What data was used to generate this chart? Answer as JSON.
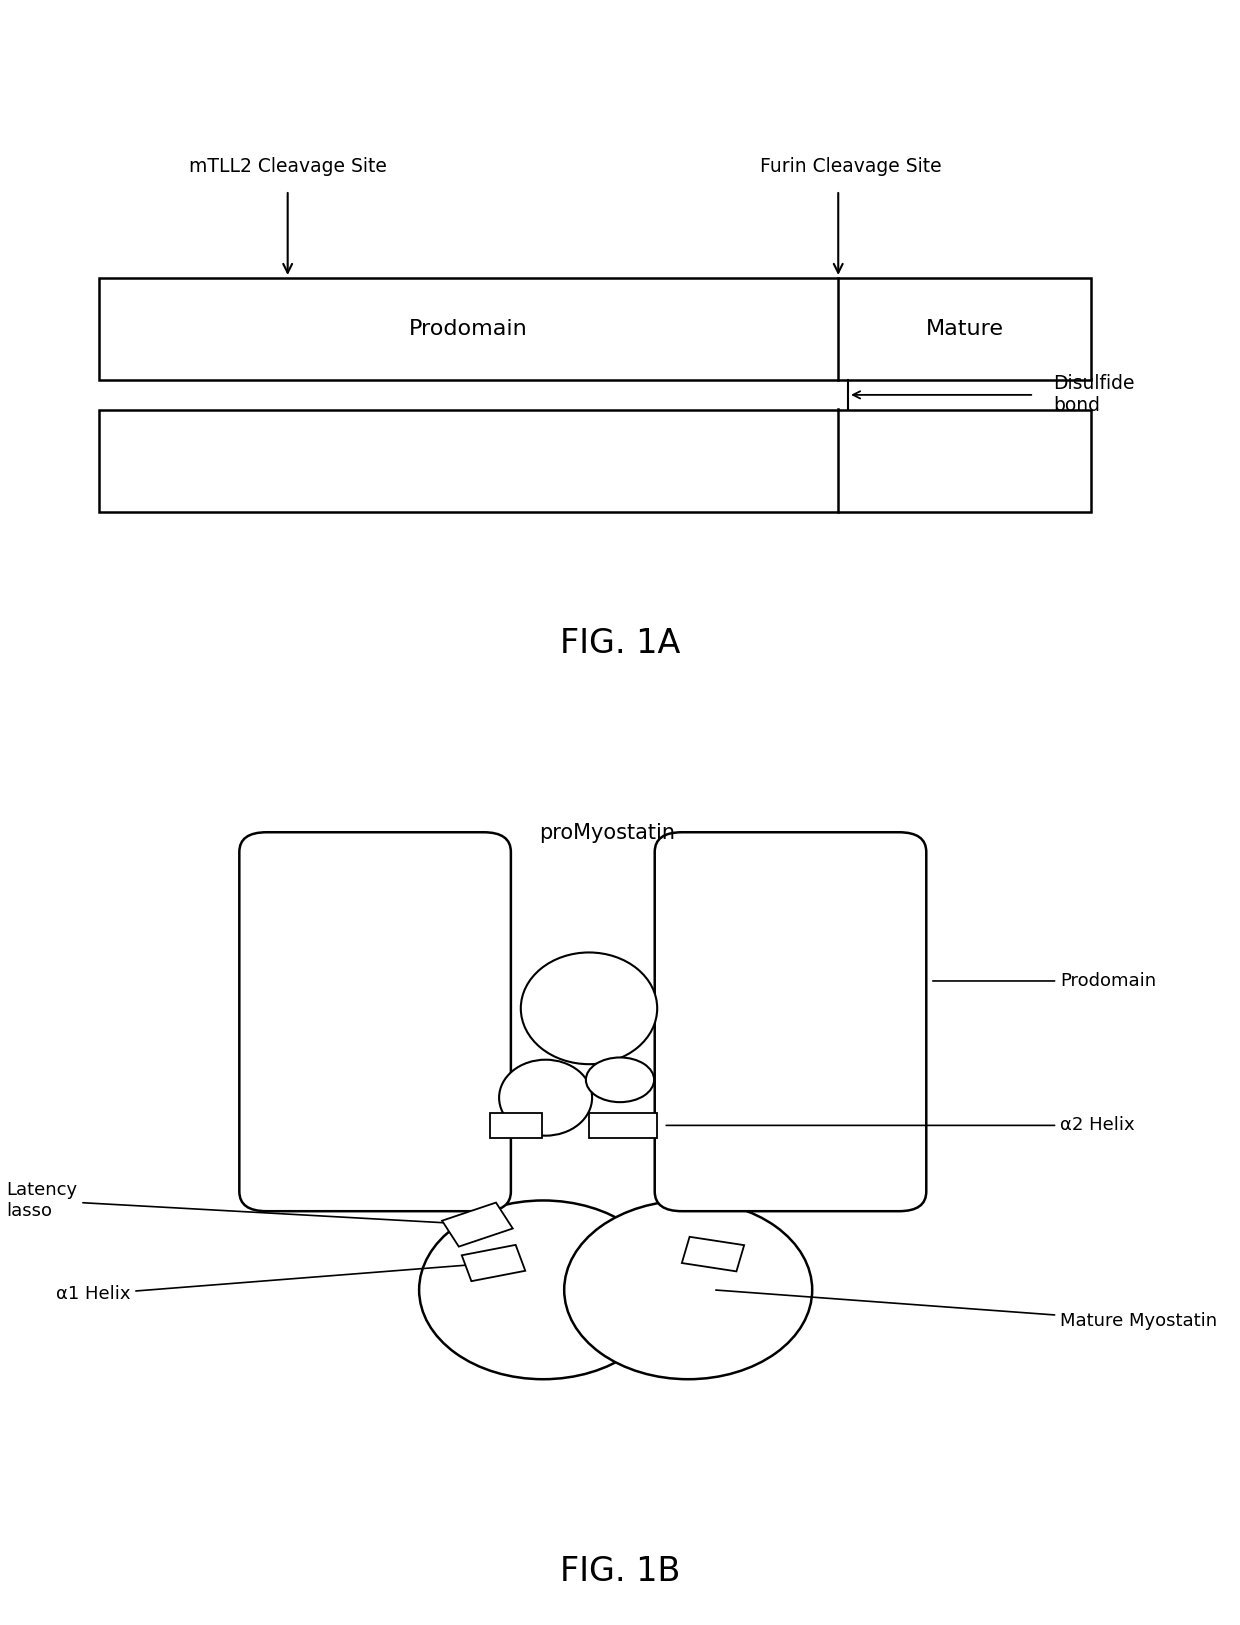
{
  "bg_color": "#ffffff",
  "fig1a": {
    "title": "FIG. 1A",
    "label_prodomain": "Prodomain",
    "label_mature": "Mature",
    "label_mtll2": "mTLL2 Cleavage Site",
    "label_furin": "Furin Cleavage Site",
    "label_disulfide": "Disulfide\nbond"
  },
  "fig1b": {
    "title": "FIG. 1B",
    "label_promyostatin": "proMyostatin",
    "label_prodomain": "Prodomain",
    "label_alpha2helix": "α2 Helix",
    "label_alpha1helix": "α1 Helix",
    "label_latency": "Latency\nlasso",
    "label_mature": "Mature Myostatin"
  }
}
